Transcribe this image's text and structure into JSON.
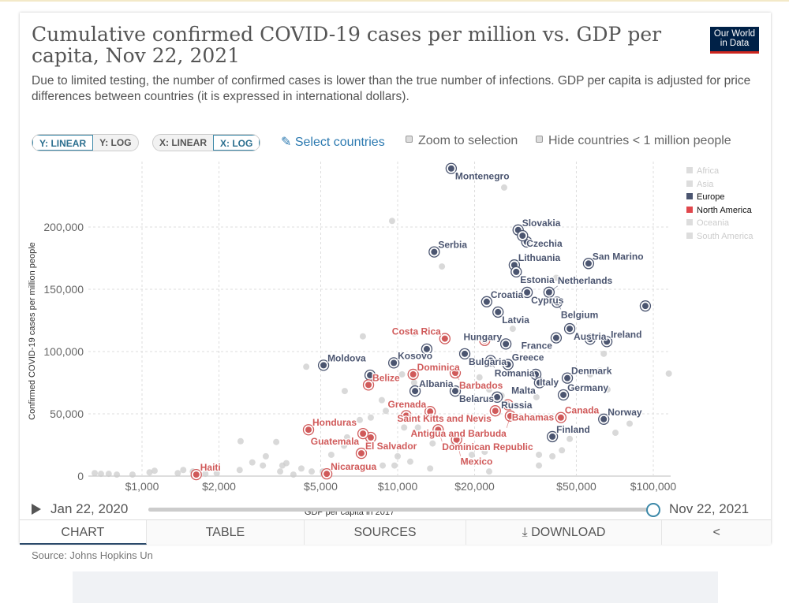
{
  "header": {
    "title": "Cumulative confirmed COVID-19 cases per million vs. GDP per capita, Nov 22, 2021",
    "subtitle": "Due to limited testing, the number of confirmed cases is lower than the true number of infections. GDP per capita is adjusted for price differences between countries (it is expressed in international dollars).",
    "logo_line1": "Our World",
    "logo_line2": "in Data"
  },
  "controls": {
    "y_linear": "Y: LINEAR",
    "y_log": "Y: LOG",
    "x_linear": "X: LINEAR",
    "x_log": "X: LOG",
    "select_countries": "Select countries",
    "zoom_to_selection": "Zoom to selection",
    "hide_small": "Hide countries < 1 million people"
  },
  "timeline": {
    "start": "Jan 22, 2020",
    "end": "Nov 22, 2021",
    "position": 1.0
  },
  "tabs": [
    "CHART",
    "TABLE",
    "SOURCES",
    "DOWNLOAD"
  ],
  "source": "Source: Johns Hopkins Un",
  "colors": {
    "europe": "#4b5570",
    "north_america": "#d05a5a",
    "other": "#cccccc",
    "accent": "#2b79b0"
  },
  "chart_data": {
    "type": "scatter",
    "xlabel": "GDP per capita in 2017",
    "ylabel": "Confirmed COVID-19 cases per million people",
    "xscale": "log",
    "yscale": "linear",
    "xlim": [
      600,
      120000
    ],
    "ylim": [
      0,
      250000
    ],
    "x_ticks": [
      {
        "v": 1000,
        "label": "$1,000"
      },
      {
        "v": 2000,
        "label": "$2,000"
      },
      {
        "v": 5000,
        "label": "$5,000"
      },
      {
        "v": 10000,
        "label": "$10,000"
      },
      {
        "v": 20000,
        "label": "$20,000"
      },
      {
        "v": 50000,
        "label": "$50,000"
      },
      {
        "v": 100000,
        "label": "$100,000"
      }
    ],
    "y_ticks": [
      {
        "v": 0,
        "label": "0"
      },
      {
        "v": 50000,
        "label": "50,000"
      },
      {
        "v": 100000,
        "label": "100,000"
      },
      {
        "v": 150000,
        "label": "150,000"
      },
      {
        "v": 200000,
        "label": "200,000"
      }
    ],
    "legend": [
      {
        "name": "Africa",
        "active": false
      },
      {
        "name": "Asia",
        "active": false
      },
      {
        "name": "Europe",
        "active": true,
        "color": "#4b5570"
      },
      {
        "name": "North America",
        "active": true,
        "color": "#e0474c"
      },
      {
        "name": "Oceania",
        "active": false
      },
      {
        "name": "South America",
        "active": false
      }
    ],
    "legend_position": "top-right",
    "highlighted": [
      {
        "name": "Montenegro",
        "region": "Europe",
        "x": 16200,
        "y": 247000
      },
      {
        "name": "Slovakia",
        "region": "Europe",
        "x": 29600,
        "y": 197600
      },
      {
        "name": "Czechia",
        "region": "Europe",
        "x": 30800,
        "y": 193000
      },
      {
        "name": "Serbia",
        "region": "Europe",
        "x": 13900,
        "y": 180000
      },
      {
        "name": "Lithuania",
        "region": "Europe",
        "x": 28600,
        "y": 169500
      },
      {
        "name": "Estonia",
        "region": "Europe",
        "x": 29100,
        "y": 164000
      },
      {
        "name": "San Marino",
        "region": "Europe",
        "x": 55800,
        "y": 170700
      },
      {
        "name": "Croatia",
        "region": "Europe",
        "x": 22300,
        "y": 140000
      },
      {
        "name": "Cyprus",
        "region": "Europe",
        "x": 32100,
        "y": 147500
      },
      {
        "name": "Netherlands",
        "region": "Europe",
        "x": 39100,
        "y": 147600
      },
      {
        "name": "Belgium",
        "region": "Europe",
        "x": 42000,
        "y": 139600
      },
      {
        "name": "Latvia",
        "region": "Europe",
        "x": 24700,
        "y": 131700
      },
      {
        "name": "Austria",
        "region": "Europe",
        "x": 47100,
        "y": 118300
      },
      {
        "name": "France",
        "region": "Europe",
        "x": 41700,
        "y": 111000
      },
      {
        "name": "Ireland",
        "region": "Europe",
        "x": 65800,
        "y": 108000
      },
      {
        "name": "Hungary",
        "region": "Europe",
        "x": 26500,
        "y": 106100
      },
      {
        "name": "Bulgaria",
        "region": "Europe",
        "x": 18300,
        "y": 98200
      },
      {
        "name": "Romania",
        "region": "Europe",
        "x": 23100,
        "y": 92700
      },
      {
        "name": "Greece",
        "region": "Europe",
        "x": 27000,
        "y": 89600
      },
      {
        "name": "Kosovo",
        "region": "Europe",
        "x": 9660,
        "y": 90900
      },
      {
        "name": "Moldova",
        "region": "Europe",
        "x": 5130,
        "y": 89000
      },
      {
        "name": "Italy",
        "region": "Europe",
        "x": 34700,
        "y": 81700
      },
      {
        "name": "Malta",
        "region": "Europe",
        "x": 35900,
        "y": 75000
      },
      {
        "name": "Denmark",
        "region": "Europe",
        "x": 46100,
        "y": 78700
      },
      {
        "name": "Albania",
        "region": "Europe",
        "x": 11700,
        "y": 68300
      },
      {
        "name": "Belarus",
        "region": "Europe",
        "x": 16800,
        "y": 68300
      },
      {
        "name": "Russia",
        "region": "Europe",
        "x": 24500,
        "y": 63400
      },
      {
        "name": "Germany",
        "region": "Europe",
        "x": 44500,
        "y": 65200
      },
      {
        "name": "Norway",
        "region": "Europe",
        "x": 64000,
        "y": 45700
      },
      {
        "name": "Finland",
        "region": "Europe",
        "x": 40300,
        "y": 31700
      },
      {
        "name": "Costa Rica",
        "region": "North America",
        "x": 15300,
        "y": 110400
      },
      {
        "name": "Barbados",
        "region": "North America",
        "x": 16800,
        "y": 82900
      },
      {
        "name": "Dominica",
        "region": "North America",
        "x": 11500,
        "y": 81700
      },
      {
        "name": "Belize",
        "region": "North America",
        "x": 7690,
        "y": 73200
      },
      {
        "name": "Bahamas",
        "region": "North America",
        "x": 27000,
        "y": 57300
      },
      {
        "name": "Saint Kitts and Nevis",
        "region": "North America",
        "x": 24100,
        "y": 52400
      },
      {
        "name": "Canada",
        "region": "North America",
        "x": 43500,
        "y": 47000
      },
      {
        "name": "Antigua and Barbuda",
        "region": "North America",
        "x": 27600,
        "y": 48200
      },
      {
        "name": "Grenada",
        "region": "North America",
        "x": 13400,
        "y": 51800
      },
      {
        "name": "Dominican Republic",
        "region": "North America",
        "x": 14400,
        "y": 37200
      },
      {
        "name": "Mexico",
        "region": "North America",
        "x": 17000,
        "y": 29300
      },
      {
        "name": "Honduras",
        "region": "North America",
        "x": 4480,
        "y": 37200
      },
      {
        "name": "Guatemala",
        "region": "North America",
        "x": 7320,
        "y": 34100
      },
      {
        "name": "El Salvador",
        "region": "North America",
        "x": 7210,
        "y": 18300
      },
      {
        "name": "Nicaragua",
        "region": "North America",
        "x": 5280,
        "y": 1800
      },
      {
        "name": "Haiti",
        "region": "North America",
        "x": 1630,
        "y": 1200
      }
    ],
    "unlabeled_highlighted": [
      {
        "region": "Europe",
        "x": 32000,
        "y": 188000
      },
      {
        "region": "Europe",
        "x": 93100,
        "y": 136600
      },
      {
        "region": "Europe",
        "x": 56600,
        "y": 110000
      },
      {
        "region": "Europe",
        "x": 13000,
        "y": 102000
      },
      {
        "region": "Europe",
        "x": 7800,
        "y": 81000
      },
      {
        "region": "North America",
        "x": 21900,
        "y": 109000
      },
      {
        "region": "North America",
        "x": 10800,
        "y": 48500
      },
      {
        "region": "North America",
        "x": 7850,
        "y": 31000
      }
    ],
    "other_points": [
      [
        653,
        2400
      ],
      [
        691,
        1800
      ],
      [
        741,
        1800
      ],
      [
        797,
        1200
      ],
      [
        918,
        1200
      ],
      [
        1070,
        3000
      ],
      [
        1120,
        4300
      ],
      [
        1380,
        2400
      ],
      [
        1450,
        4900
      ],
      [
        1580,
        3700
      ],
      [
        1770,
        1800
      ],
      [
        1960,
        2400
      ],
      [
        2410,
        4900
      ],
      [
        2430,
        28000
      ],
      [
        2700,
        11000
      ],
      [
        2970,
        8500
      ],
      [
        3050,
        15900
      ],
      [
        3350,
        27400
      ],
      [
        3470,
        3700
      ],
      [
        3540,
        8500
      ],
      [
        3670,
        10400
      ],
      [
        3910,
        1200
      ],
      [
        4200,
        6100
      ],
      [
        4610,
        3700
      ],
      [
        5090,
        3700
      ],
      [
        5500,
        17100
      ],
      [
        6170,
        24400
      ],
      [
        6210,
        68300
      ],
      [
        4390,
        87800
      ],
      [
        6340,
        31100
      ],
      [
        7110,
        45100
      ],
      [
        7690,
        32900
      ],
      [
        7850,
        47000
      ],
      [
        8670,
        61000
      ],
      [
        8740,
        8500
      ],
      [
        8990,
        52400
      ],
      [
        9720,
        8500
      ],
      [
        10000,
        15900
      ],
      [
        10400,
        81700
      ],
      [
        10600,
        39000
      ],
      [
        11000,
        23800
      ],
      [
        11200,
        11600
      ],
      [
        11600,
        75000
      ],
      [
        12000,
        39000
      ],
      [
        13400,
        6100
      ],
      [
        13700,
        26200
      ],
      [
        16600,
        26800
      ],
      [
        17900,
        32900
      ],
      [
        19500,
        17100
      ],
      [
        19800,
        22600
      ],
      [
        21900,
        19500
      ],
      [
        22800,
        3700
      ],
      [
        20900,
        79300
      ],
      [
        22800,
        69500
      ],
      [
        25500,
        64600
      ],
      [
        28200,
        118300
      ],
      [
        34900,
        63400
      ],
      [
        35700,
        17100
      ],
      [
        35700,
        8500
      ],
      [
        40300,
        15900
      ],
      [
        43900,
        20700
      ],
      [
        47100,
        29900
      ],
      [
        56600,
        81700
      ],
      [
        61700,
        84800
      ],
      [
        64000,
        98200
      ],
      [
        66200,
        69500
      ],
      [
        71100,
        34800
      ],
      [
        80800,
        42100
      ],
      [
        115000,
        82300
      ],
      [
        9510,
        204900
      ],
      [
        14900,
        168300
      ],
      [
        26100,
        231700
      ],
      [
        41700,
        159200
      ],
      [
        7310,
        112200
      ],
      [
        11600,
        114600
      ]
    ]
  }
}
